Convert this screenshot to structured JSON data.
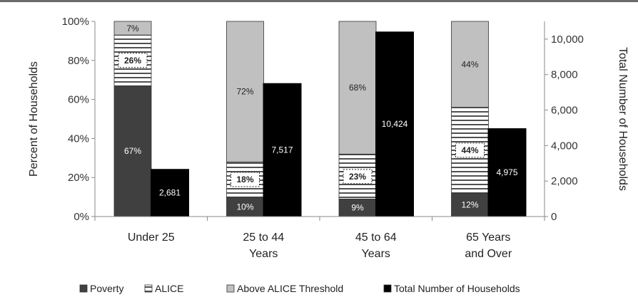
{
  "chart_data": {
    "type": "bar",
    "categories": [
      [
        "Under 25"
      ],
      [
        "25 to 44",
        "Years"
      ],
      [
        "45 to 64",
        "Years"
      ],
      [
        "65 Years",
        "and Over"
      ]
    ],
    "series": [
      {
        "name": "Poverty",
        "axis": "left",
        "stack": "percent",
        "values": [
          67,
          10,
          9,
          12
        ],
        "labels": [
          "67%",
          "10%",
          "9%",
          "12%"
        ],
        "color": "#404040"
      },
      {
        "name": "ALICE",
        "axis": "left",
        "stack": "percent",
        "values": [
          26,
          18,
          23,
          44
        ],
        "labels": [
          "26%",
          "18%",
          "23%",
          "44%"
        ],
        "color": "#ffffff"
      },
      {
        "name": "Above ALICE Threshold",
        "axis": "left",
        "stack": "percent",
        "values": [
          7,
          72,
          68,
          44
        ],
        "labels": [
          "7%",
          "72%",
          "68%",
          "44%"
        ],
        "color": "#c0c0c0"
      },
      {
        "name": "Total Number of Households",
        "axis": "right",
        "values": [
          2681,
          7517,
          10424,
          4975
        ],
        "labels": [
          "2,681",
          "7,517",
          "10,424",
          "4,975"
        ],
        "color": "#000000"
      }
    ],
    "ylabel": "Percent of Households",
    "y2label": "Total Number of Households",
    "ylim": [
      0,
      100
    ],
    "y2lim": [
      0,
      11000
    ],
    "yticks": [
      "0%",
      "20%",
      "40%",
      "60%",
      "80%",
      "100%"
    ],
    "y2ticks": [
      "0",
      "2,000",
      "4,000",
      "6,000",
      "8,000",
      "10,000"
    ],
    "legend_position": "bottom",
    "grid": false
  }
}
